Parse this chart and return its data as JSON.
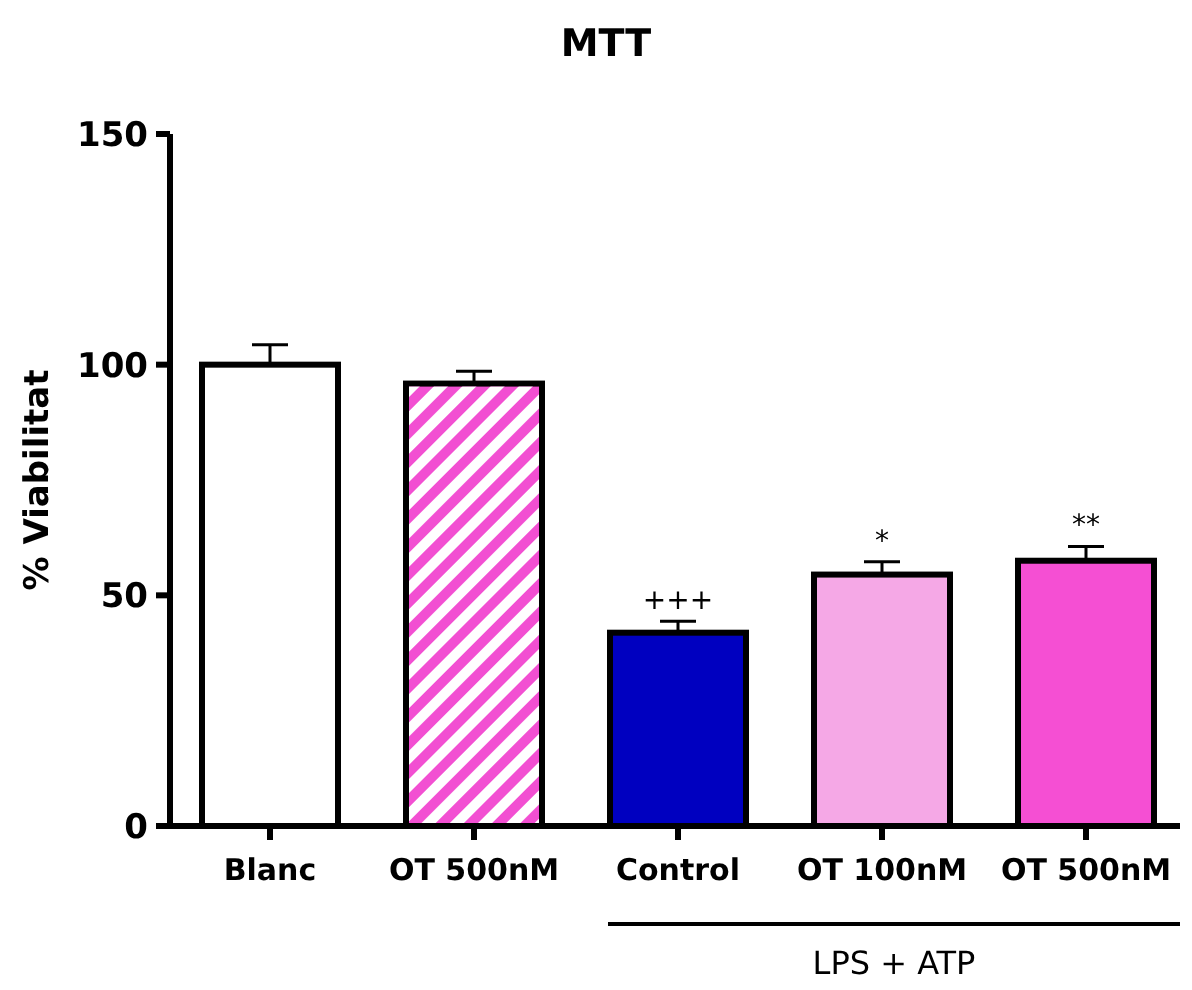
{
  "chart_data": {
    "type": "bar",
    "title": "MTT",
    "ylabel": "% Viabilitat",
    "categories": [
      "Blanc",
      "OT 500nM",
      "Control",
      "OT 100nM",
      "OT 500nM"
    ],
    "values": [
      100,
      95.9,
      41.9,
      54.5,
      57.5
    ],
    "errors": [
      4.3,
      2.7,
      2.5,
      2.8,
      3.1
    ],
    "colors": [
      "#ffffff",
      "#f24fd2",
      "#0000c0",
      "#f5a8e6",
      "#f54fd3"
    ],
    "ylim": [
      0,
      150
    ],
    "yticks": [
      0,
      50,
      100,
      150
    ],
    "annotations": [
      {
        "text": "+++",
        "x": "Control",
        "y": 41.9
      },
      {
        "text": "*",
        "x": "OT 100nM",
        "y": 54.5
      },
      "**",
      "LPS + ATP"
    ]
  }
}
